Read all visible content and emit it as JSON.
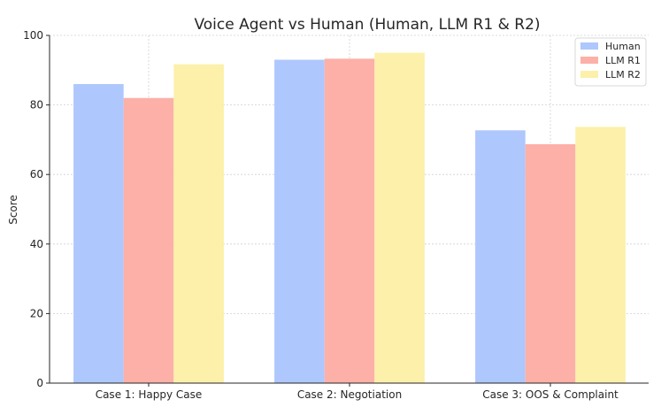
{
  "chart_data": {
    "type": "bar",
    "title": "Voice Agent vs Human (Human, LLM R1 & R2)",
    "xlabel": "",
    "ylabel": "Score",
    "ylim": [
      0,
      100
    ],
    "yticks": [
      0,
      20,
      40,
      60,
      80,
      100
    ],
    "grid": true,
    "legend_position": "top-right",
    "categories": [
      "Case 1: Happy Case",
      "Case 2: Negotiation",
      "Case 3: OOS & Complaint"
    ],
    "series": [
      {
        "name": "Human",
        "values": [
          86,
          93,
          72.7
        ],
        "color": "#aec7fc"
      },
      {
        "name": "LLM R1",
        "values": [
          82,
          93.3,
          68.7
        ],
        "color": "#fcb0a8"
      },
      {
        "name": "LLM R2",
        "values": [
          91.7,
          95,
          73.7
        ],
        "color": "#fcf0aa"
      }
    ]
  }
}
